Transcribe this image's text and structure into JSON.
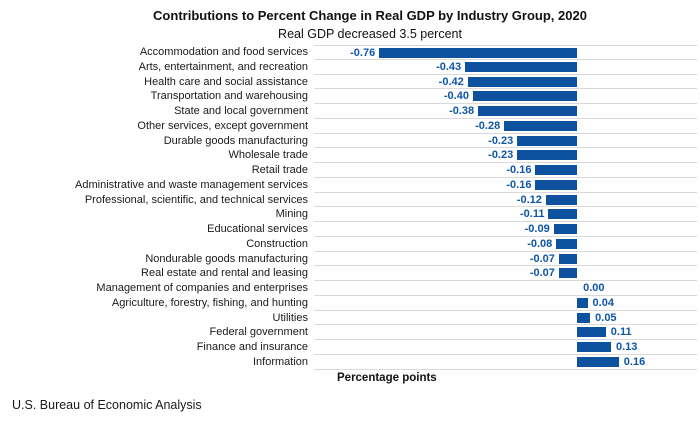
{
  "header": {
    "title": "Contributions to Percent Change in Real GDP by Industry Group, 2020",
    "subtitle": "Real GDP decreased 3.5 percent"
  },
  "chart_data": {
    "type": "bar",
    "orientation": "horizontal",
    "title": "Contributions to Percent Change in Real GDP by Industry Group, 2020",
    "subtitle": "Real GDP decreased 3.5 percent",
    "xlabel": "Percentage points",
    "xlim": [
      -1.0,
      0.46
    ],
    "grid": "category-separator-lines-horizontal",
    "legend": "none",
    "bar_color": "#0e519f",
    "value_label_color": "#0f56a8",
    "gridline_color": "#d9d9d9",
    "categories": [
      "Accommodation and food services",
      "Arts, entertainment, and recreation",
      "Health care and social assistance",
      "Transportation and warehousing",
      "State and local government",
      "Other services, except government",
      "Durable goods manufacturing",
      "Wholesale trade",
      "Retail trade",
      "Administrative and waste management services",
      "Professional, scientific, and technical services",
      "Mining",
      "Educational services",
      "Construction",
      "Nondurable goods manufacturing",
      "Real estate and rental and leasing",
      "Management of companies and enterprises",
      "Agriculture, forestry, fishing, and hunting",
      "Utilities",
      "Federal government",
      "Finance and insurance",
      "Information"
    ],
    "values": [
      -0.76,
      -0.43,
      -0.42,
      -0.4,
      -0.38,
      -0.28,
      -0.23,
      -0.23,
      -0.16,
      -0.16,
      -0.12,
      -0.11,
      -0.09,
      -0.08,
      -0.07,
      -0.07,
      0.0,
      0.04,
      0.05,
      0.11,
      0.13,
      0.16
    ],
    "value_labels": [
      "-0.76",
      "-0.43",
      "-0.42",
      "-0.40",
      "-0.38",
      "-0.28",
      "-0.23",
      "-0.23",
      "-0.16",
      "-0.16",
      "-0.12",
      "-0.11",
      "-0.09",
      "-0.08",
      "-0.07",
      "-0.07",
      "0.00",
      "0.04",
      "0.05",
      "0.11",
      "0.13",
      "0.16"
    ]
  },
  "footer": {
    "source": "U.S. Bureau of Economic Analysis"
  }
}
